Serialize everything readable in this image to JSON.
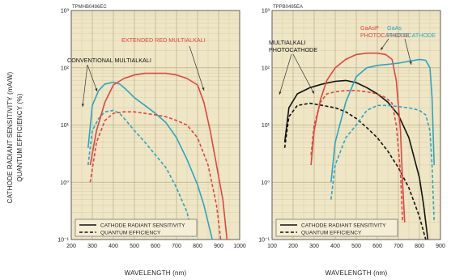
{
  "ylabel_line1": "CATHODE RADIANT SENSITIVITY (mA/W)",
  "ylabel_line2": "QUANTUM EFFICIENCY (%)",
  "chart_data": [
    {
      "type": "line",
      "code": "TPMHB0496EC",
      "xlabel": "WAVELENGTH (nm)",
      "x_ticks": [
        200,
        300,
        400,
        500,
        600,
        700,
        800,
        900,
        1000
      ],
      "xlim": [
        200,
        1000
      ],
      "y_scale": "log",
      "ylim": [
        0.1,
        1000
      ],
      "y_tick_labels": [
        "10³",
        "10²",
        "10¹",
        "10⁰",
        "10⁻¹"
      ],
      "legend": {
        "placement": "bottom",
        "solid_label": "CATHODE RADIANT SENSITIVITY",
        "dashed_label": "QUANTUM EFFICIENCY"
      },
      "annotations": [
        {
          "text": "EXTENDED RED MULTIALKALI",
          "color": "#e0453f",
          "series": "Extended red multialkali"
        },
        {
          "text": "CONVENTIONAL MULTIALKALI",
          "color": "#111111",
          "series": "Conventional multialkali"
        }
      ],
      "series": [
        {
          "curve": "conventional",
          "color": "#2ba6bf",
          "line": "solid",
          "x": [
            280,
            300,
            330,
            360,
            400,
            430,
            460,
            500,
            550,
            600,
            650,
            700,
            750,
            800,
            830,
            850,
            870
          ],
          "y": [
            4,
            22,
            40,
            52,
            56,
            52,
            42,
            30,
            22,
            16,
            11,
            6,
            2.5,
            0.9,
            0.4,
            0.2,
            0.1
          ]
        },
        {
          "curve": "conventional",
          "color": "#2ba6bf",
          "line": "dashed",
          "x": [
            280,
            300,
            330,
            360,
            400,
            430,
            460,
            500,
            550,
            600,
            650,
            700,
            750,
            780
          ],
          "y": [
            2,
            8,
            13,
            17,
            18,
            16,
            12,
            8,
            5,
            3,
            1.8,
            0.8,
            0.3,
            0.1
          ]
        },
        {
          "curve": "extended red",
          "color": "#e0453f",
          "line": "solid",
          "x": [
            290,
            320,
            360,
            400,
            450,
            500,
            550,
            600,
            650,
            700,
            750,
            800,
            830,
            860,
            890,
            920,
            940
          ],
          "y": [
            2,
            8,
            25,
            50,
            65,
            75,
            80,
            80,
            80,
            75,
            65,
            50,
            25,
            8,
            2,
            0.5,
            0.1
          ]
        },
        {
          "curve": "extended red",
          "color": "#e0453f",
          "line": "dashed",
          "x": [
            290,
            320,
            360,
            400,
            450,
            500,
            550,
            600,
            650,
            700,
            750,
            800,
            850,
            890,
            910
          ],
          "y": [
            1,
            5,
            12,
            16,
            17,
            17,
            16,
            15,
            14,
            12,
            10,
            6,
            2,
            0.4,
            0.1
          ]
        }
      ]
    },
    {
      "type": "line",
      "code": "TPPB0495EA",
      "xlabel": "WAVELENGTH (nm)",
      "x_ticks": [
        100,
        200,
        300,
        400,
        500,
        600,
        700,
        800,
        900
      ],
      "xlim": [
        100,
        900
      ],
      "y_scale": "log",
      "ylim": [
        0.1,
        1000
      ],
      "y_tick_labels": [
        "10³",
        "10²",
        "10¹",
        "10⁰",
        "10⁻¹"
      ],
      "legend": {
        "placement": "bottom",
        "solid_label": "CATHODE RADIANT SENSITIVITY",
        "dashed_label": "QUANTUM EFFICIENCY"
      },
      "annotations": [
        {
          "text": "MULTIALKALI PHOTOCATHODE",
          "color": "#111111",
          "series": "Multialkali photocathode"
        },
        {
          "text": "GaAsP PHOTOCATHODE",
          "color": "#e0453f",
          "series": "GaAsP photocathode"
        },
        {
          "text": "GaAs PHOTOCATHODE",
          "color": "#2ba6bf",
          "series": "GaAs photocathode"
        }
      ],
      "series": [
        {
          "curve": "multialkali",
          "color": "#111111",
          "line": "solid",
          "x": [
            160,
            180,
            220,
            280,
            340,
            400,
            450,
            500,
            550,
            600,
            650,
            700,
            750,
            800,
            820,
            840
          ],
          "y": [
            5,
            20,
            35,
            45,
            52,
            58,
            60,
            55,
            45,
            35,
            25,
            15,
            6,
            1.2,
            0.4,
            0.1
          ]
        },
        {
          "curve": "multialkali",
          "color": "#111111",
          "line": "dashed",
          "x": [
            160,
            180,
            220,
            280,
            340,
            400,
            450,
            500,
            550,
            600,
            650,
            700,
            750,
            800,
            830
          ],
          "y": [
            4,
            14,
            22,
            24,
            22,
            20,
            17,
            13,
            9,
            6,
            3.5,
            1.8,
            0.8,
            0.25,
            0.1
          ]
        },
        {
          "curve": "GaAsP",
          "color": "#e0453f",
          "line": "solid",
          "x": [
            285,
            300,
            330,
            360,
            400,
            450,
            500,
            550,
            600,
            640,
            670,
            690,
            710,
            720,
            730
          ],
          "y": [
            2,
            8,
            28,
            60,
            100,
            140,
            170,
            180,
            180,
            170,
            140,
            60,
            8,
            1,
            0.2
          ]
        },
        {
          "curve": "GaAsP",
          "color": "#e0453f",
          "line": "dashed",
          "x": [
            285,
            300,
            330,
            360,
            400,
            450,
            500,
            550,
            600,
            640,
            670,
            690,
            710,
            720
          ],
          "y": [
            3,
            10,
            25,
            35,
            38,
            40,
            40,
            38,
            35,
            30,
            24,
            10,
            1.5,
            0.2
          ]
        },
        {
          "curve": "GaAs",
          "color": "#2ba6bf",
          "line": "solid",
          "x": [
            380,
            400,
            450,
            500,
            550,
            600,
            650,
            700,
            750,
            800,
            830,
            850,
            860,
            870
          ],
          "y": [
            1,
            5,
            25,
            70,
            100,
            110,
            115,
            120,
            130,
            140,
            135,
            100,
            30,
            2
          ]
        },
        {
          "curve": "GaAs",
          "color": "#2ba6bf",
          "line": "dashed",
          "x": [
            380,
            400,
            450,
            500,
            550,
            600,
            650,
            700,
            750,
            800,
            830,
            850,
            860,
            870
          ],
          "y": [
            0.5,
            2,
            6,
            10,
            18,
            22,
            22,
            21,
            20,
            18,
            15,
            8,
            2,
            0.2
          ]
        }
      ]
    }
  ]
}
